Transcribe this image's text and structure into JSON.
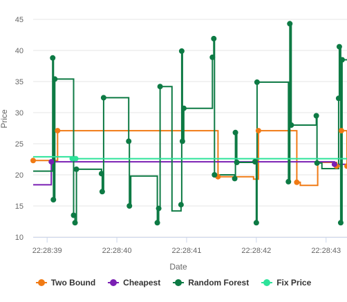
{
  "chart_data": {
    "type": "line",
    "title": "",
    "xlabel": "Date",
    "ylabel": "Price",
    "ylim": [
      10,
      45
    ],
    "xlim": [
      "22:28:38.80",
      "22:28:43.30"
    ],
    "x_ticks": [
      "22:28:39",
      "22:28:40",
      "22:28:41",
      "22:28:42",
      "22:28:43"
    ],
    "y_ticks": [
      10,
      15,
      20,
      25,
      30,
      35,
      40,
      45
    ],
    "grid": true,
    "legend_position": "bottom",
    "series": [
      {
        "name": "Two Bound",
        "color": "#f07a14",
        "step": true,
        "points": [
          {
            "x": "22:28:38.80",
            "y": 22.3,
            "marker": true
          },
          {
            "x": "22:28:39.15",
            "y": 27.1,
            "marker": true
          },
          {
            "x": "22:28:41.45",
            "y": 19.7,
            "marker": true
          },
          {
            "x": "22:28:41.96",
            "y": 19.3,
            "marker": false
          },
          {
            "x": "22:28:42.03",
            "y": 27.1,
            "marker": true
          },
          {
            "x": "22:28:42.58",
            "y": 18.8,
            "marker": true
          },
          {
            "x": "22:28:42.63",
            "y": 18.3,
            "marker": false
          },
          {
            "x": "22:28:42.88",
            "y": 22.0,
            "marker": false
          },
          {
            "x": "22:28:43.15",
            "y": 21.4,
            "marker": true
          },
          {
            "x": "22:28:43.22",
            "y": 27.1,
            "marker": true
          },
          {
            "x": "22:28:43.30",
            "y": 21.4,
            "marker": true
          }
        ]
      },
      {
        "name": "Cheapest",
        "color": "#7a1fb3",
        "step": true,
        "points": [
          {
            "x": "22:28:38.80",
            "y": 18.4,
            "marker": false
          },
          {
            "x": "22:28:39.06",
            "y": 22.1,
            "marker": true
          },
          {
            "x": "22:28:41.52",
            "y": 22.1,
            "marker": false
          },
          {
            "x": "22:28:43.12",
            "y": 21.7,
            "marker": true
          },
          {
            "x": "22:28:43.30",
            "y": 21.7,
            "marker": false
          }
        ]
      },
      {
        "name": "Random Forest",
        "color": "#0d7a44",
        "step": true,
        "points": [
          {
            "x": "22:28:38.80",
            "y": 20.6,
            "marker": false
          },
          {
            "x": "22:28:39.08",
            "y": 38.8,
            "marker": true
          },
          {
            "x": "22:28:39.09",
            "y": 16.0,
            "marker": true
          },
          {
            "x": "22:28:39.11",
            "y": 35.4,
            "marker": true
          },
          {
            "x": "22:28:39.38",
            "y": 13.5,
            "marker": true
          },
          {
            "x": "22:28:39.40",
            "y": 12.3,
            "marker": true
          },
          {
            "x": "22:28:39.42",
            "y": 20.9,
            "marker": true
          },
          {
            "x": "22:28:39.78",
            "y": 20.2,
            "marker": true
          },
          {
            "x": "22:28:39.79",
            "y": 17.3,
            "marker": true
          },
          {
            "x": "22:28:39.81",
            "y": 32.4,
            "marker": true
          },
          {
            "x": "22:28:40.17",
            "y": 25.4,
            "marker": true
          },
          {
            "x": "22:28:40.18",
            "y": 15.0,
            "marker": true
          },
          {
            "x": "22:28:40.20",
            "y": 19.8,
            "marker": false
          },
          {
            "x": "22:28:40.58",
            "y": 12.3,
            "marker": true
          },
          {
            "x": "22:28:40.60",
            "y": 14.6,
            "marker": true
          },
          {
            "x": "22:28:40.62",
            "y": 34.2,
            "marker": true
          },
          {
            "x": "22:28:40.79",
            "y": 14.2,
            "marker": false
          },
          {
            "x": "22:28:40.92",
            "y": 15.2,
            "marker": true
          },
          {
            "x": "22:28:40.93",
            "y": 39.9,
            "marker": true
          },
          {
            "x": "22:28:40.94",
            "y": 25.4,
            "marker": true
          },
          {
            "x": "22:28:40.96",
            "y": 30.7,
            "marker": true
          },
          {
            "x": "22:28:41.37",
            "y": 38.9,
            "marker": true
          },
          {
            "x": "22:28:41.39",
            "y": 41.9,
            "marker": true
          },
          {
            "x": "22:28:41.40",
            "y": 20.0,
            "marker": true
          },
          {
            "x": "22:28:41.69",
            "y": 19.4,
            "marker": true
          },
          {
            "x": "22:28:41.70",
            "y": 26.8,
            "marker": true
          },
          {
            "x": "22:28:41.72",
            "y": 22.0,
            "marker": true
          },
          {
            "x": "22:28:41.98",
            "y": 22.1,
            "marker": true
          },
          {
            "x": "22:28:42.00",
            "y": 12.3,
            "marker": true
          },
          {
            "x": "22:28:42.01",
            "y": 34.9,
            "marker": true
          },
          {
            "x": "22:28:42.46",
            "y": 18.9,
            "marker": true
          },
          {
            "x": "22:28:42.48",
            "y": 44.3,
            "marker": true
          },
          {
            "x": "22:28:42.50",
            "y": 28.0,
            "marker": true
          },
          {
            "x": "22:28:42.86",
            "y": 29.5,
            "marker": true
          },
          {
            "x": "22:28:42.87",
            "y": 21.9,
            "marker": true
          },
          {
            "x": "22:28:42.94",
            "y": 21.0,
            "marker": false
          },
          {
            "x": "22:28:43.18",
            "y": 32.3,
            "marker": true
          },
          {
            "x": "22:28:43.19",
            "y": 40.6,
            "marker": true
          },
          {
            "x": "22:28:43.21",
            "y": 12.3,
            "marker": true
          },
          {
            "x": "22:28:43.23",
            "y": 38.5,
            "marker": true
          },
          {
            "x": "22:28:43.30",
            "y": 38.5,
            "marker": false
          }
        ]
      },
      {
        "name": "Fix Price",
        "color": "#2de39a",
        "step": true,
        "points": [
          {
            "x": "22:28:38.80",
            "y": 22.9,
            "marker": false
          },
          {
            "x": "22:28:39.34",
            "y": 22.9,
            "marker": false
          },
          {
            "x": "22:28:39.36",
            "y": 22.6,
            "marker": true
          },
          {
            "x": "22:28:39.41",
            "y": 22.6,
            "marker": true
          },
          {
            "x": "22:28:43.30",
            "y": 22.6,
            "marker": false
          }
        ]
      }
    ]
  }
}
